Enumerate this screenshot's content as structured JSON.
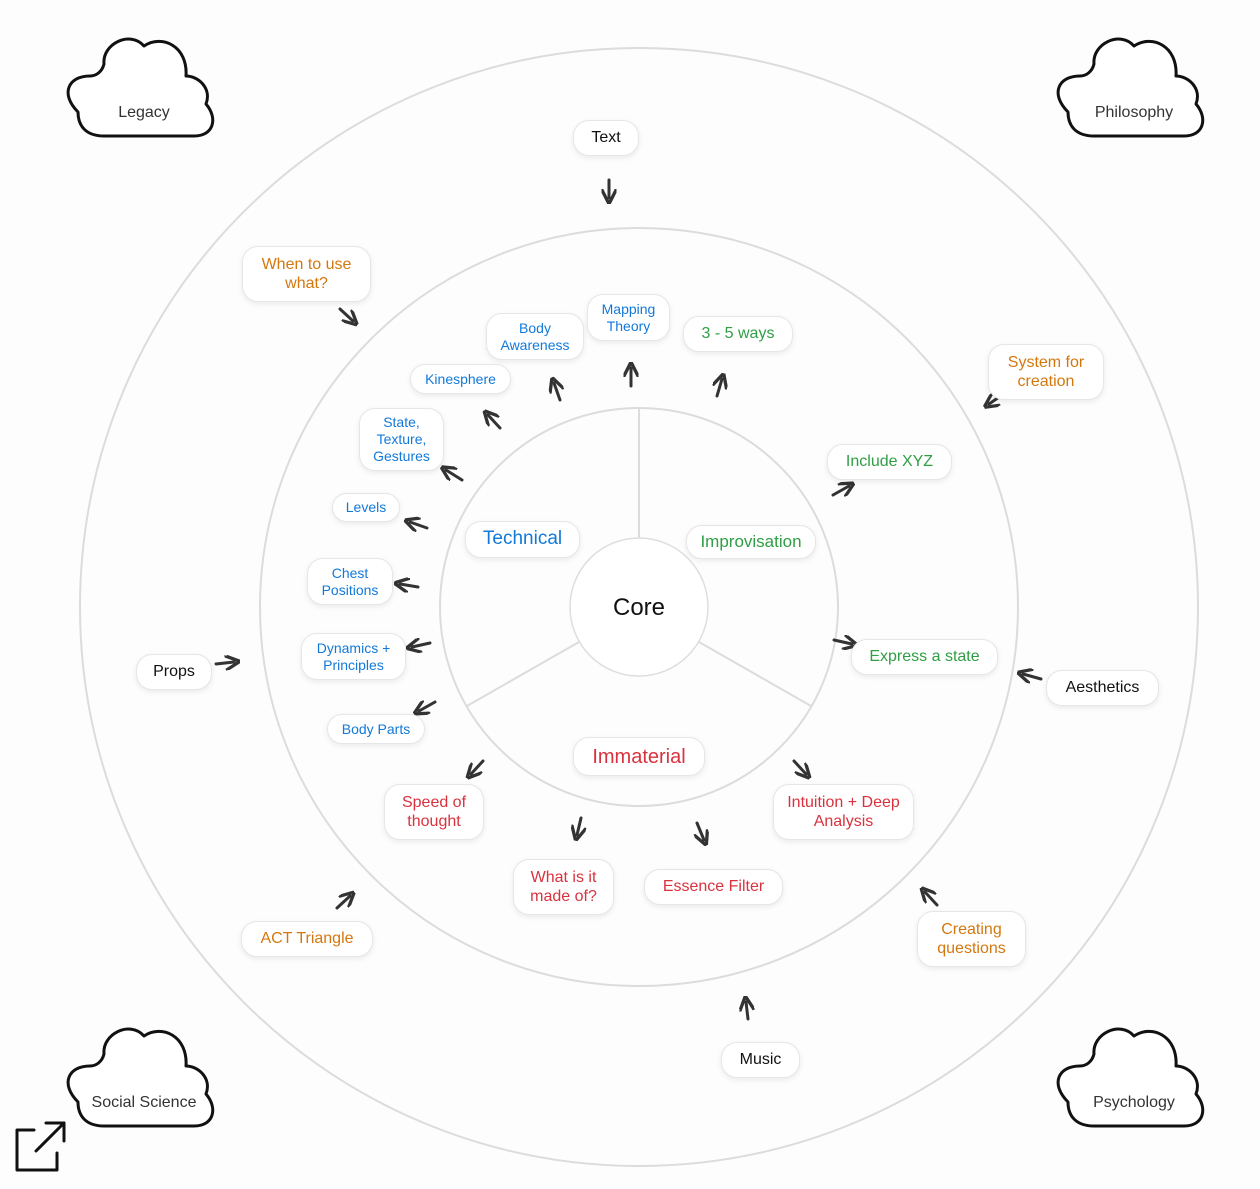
{
  "core": {
    "label": "Core"
  },
  "colors": {
    "technical": "#1279d9",
    "improvisation": "#2f9e44",
    "immaterial": "#d9323e",
    "outer": "#d4780e",
    "external": "#111111",
    "ring": "#dddddd",
    "arrow": "#333333"
  },
  "sections": {
    "technical": "Technical",
    "improvisation": "Improvisation",
    "immaterial": "Immaterial"
  },
  "technical_items": {
    "body_awareness": "Body Awareness",
    "mapping_theory": "Mapping Theory",
    "kinesphere": "Kinesphere",
    "state_texture_gestures": "State, Texture, Gestures",
    "levels": "Levels",
    "chest_positions": "Chest Positions",
    "dynamics_principles": "Dynamics + Principles",
    "body_parts": "Body Parts"
  },
  "improvisation_items": {
    "three_five_ways": "3 - 5 ways",
    "include_xyz": "Include XYZ",
    "express_state": "Express a state"
  },
  "immaterial_items": {
    "speed_of_thought": "Speed of thought",
    "what_is_it_made_of": "What is it made of?",
    "essence_filter": "Essence Filter",
    "intuition_deep_analysis": "Intuition + Deep Analysis"
  },
  "outer_items": {
    "when_to_use_what": "When to use what?",
    "system_for_creation": "System for creation",
    "act_triangle": "ACT Triangle",
    "creating_questions": "Creating questions"
  },
  "external_items": {
    "text": "Text",
    "props": "Props",
    "aesthetics": "Aesthetics",
    "music": "Music"
  },
  "clouds": {
    "legacy": "Legacy",
    "philosophy": "Philosophy",
    "social_science": "Social Science",
    "psychology": "Psychology"
  },
  "icons": {
    "expand": "external-link-icon",
    "arrow": "arrow-icon",
    "cloud": "cloud-icon"
  }
}
